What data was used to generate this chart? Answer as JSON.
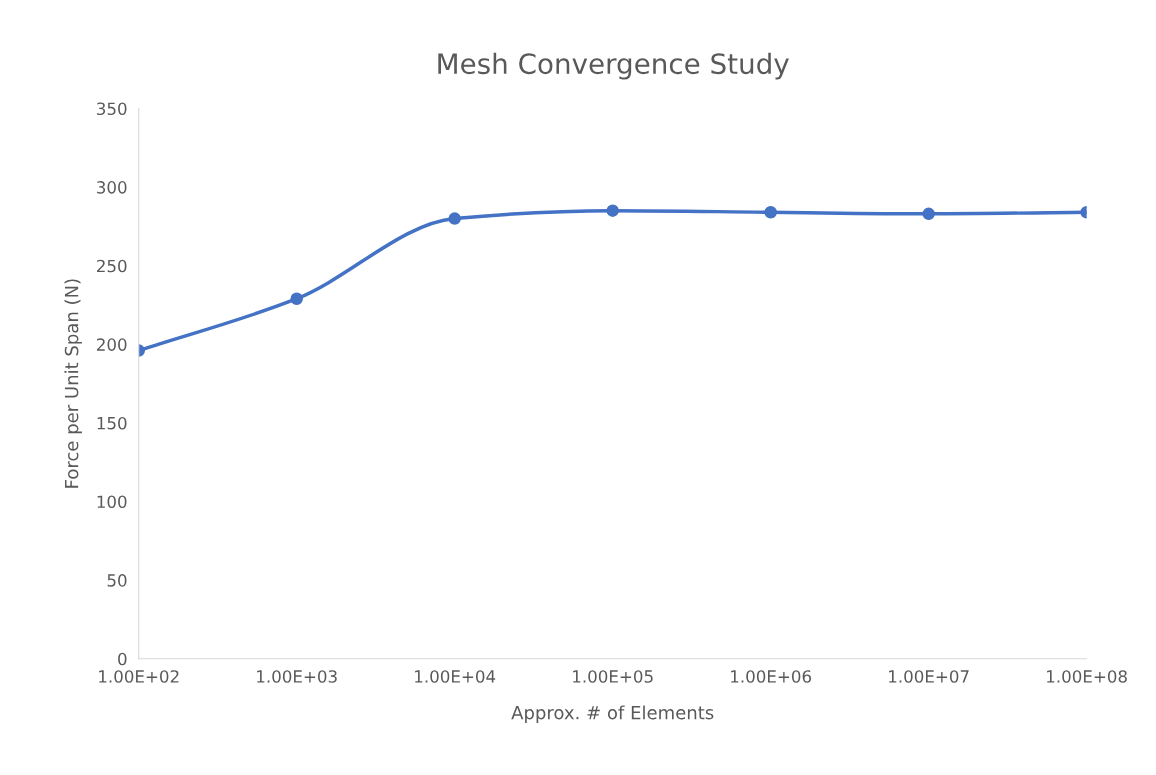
{
  "chart_data": {
    "type": "line",
    "title": "Mesh Convergence Study",
    "xlabel": "Approx. # of Elements",
    "ylabel": "Force per Unit Span (N)",
    "x": [
      100,
      1000,
      10000,
      100000,
      1000000,
      10000000,
      100000000
    ],
    "series": [
      {
        "color": "#4472c4",
        "values": [
          196,
          229,
          280,
          285,
          284,
          283,
          284
        ]
      }
    ],
    "log": "x",
    "xlim": [
      100,
      100000000
    ],
    "xticks": [
      {
        "value": 100,
        "label": "1.00E+02"
      },
      {
        "value": 1000,
        "label": "1.00E+03"
      },
      {
        "value": 10000,
        "label": "1.00E+04"
      },
      {
        "value": 100000,
        "label": "1.00E+05"
      },
      {
        "value": 1000000,
        "label": "1.00E+06"
      },
      {
        "value": 10000000,
        "label": "1.00E+07"
      },
      {
        "value": 100000000,
        "label": "1.00E+08"
      }
    ],
    "ylim": [
      0,
      350
    ],
    "yticks": [
      0,
      50,
      100,
      150,
      200,
      250,
      300,
      350
    ],
    "grid": false,
    "marker": "circle",
    "line_style": "solid"
  }
}
